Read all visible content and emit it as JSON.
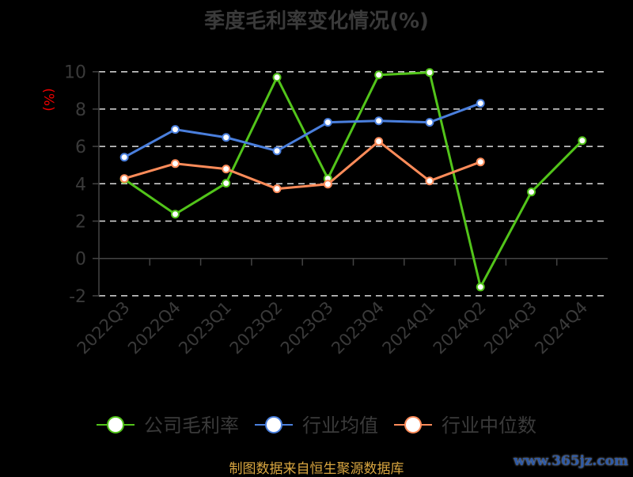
{
  "chart_data": {
    "type": "line",
    "title": "季度毛利率变化情况(%)",
    "ylabel": "(%)",
    "xlabel": "",
    "categories": [
      "2022Q3",
      "2022Q4",
      "2023Q1",
      "2023Q2",
      "2023Q3",
      "2023Q4",
      "2024Q1",
      "2024Q2",
      "2024Q3",
      "2024Q4"
    ],
    "ylim": [
      -2,
      10
    ],
    "yticks": [
      -2,
      0,
      2,
      4,
      6,
      8,
      10
    ],
    "grid": true,
    "legend_position": "bottom",
    "series": [
      {
        "name": "公司毛利率",
        "color": "#52c41a",
        "values": [
          4.24,
          2.37,
          4.03,
          9.7,
          4.28,
          9.83,
          9.96,
          -1.53,
          3.56,
          6.31
        ]
      },
      {
        "name": "行业均值",
        "color": "#4a7fdd",
        "values": [
          5.42,
          6.91,
          6.48,
          5.76,
          7.29,
          7.37,
          7.29,
          8.31,
          null,
          null
        ]
      },
      {
        "name": "行业中位数",
        "color": "#ff8c5a",
        "values": [
          4.28,
          5.08,
          4.79,
          3.73,
          3.98,
          6.27,
          4.15,
          5.17,
          null,
          null
        ]
      }
    ]
  },
  "source": "制图数据来自恒生聚源数据库",
  "watermark": "www.365jz.com"
}
